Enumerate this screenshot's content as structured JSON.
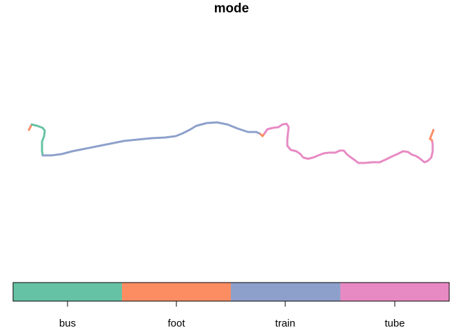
{
  "title": "mode",
  "legend": {
    "entries": [
      {
        "label": "bus",
        "color": "#66C2A5"
      },
      {
        "label": "foot",
        "color": "#FC8D62"
      },
      {
        "label": "train",
        "color": "#8DA0CB"
      },
      {
        "label": "tube",
        "color": "#E78AC3"
      }
    ]
  }
}
